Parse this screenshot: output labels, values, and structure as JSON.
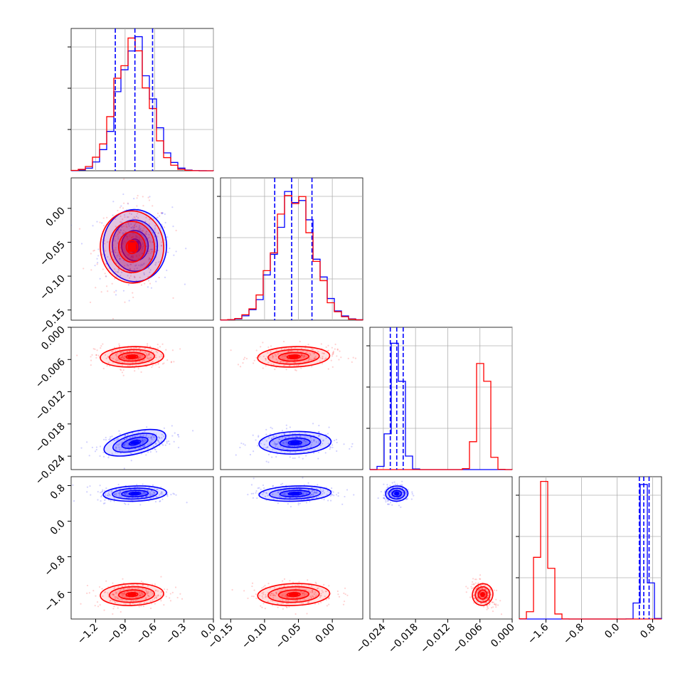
{
  "chart_data": {
    "type": "corner",
    "params": [
      {
        "range": [
          -1.45,
          0.0
        ],
        "ticks": [
          -1.2,
          -0.9,
          -0.6,
          -0.3,
          0.0
        ],
        "tick_labels": [
          "−1.2",
          "−0.9",
          "−0.6",
          "−0.3",
          "0.0"
        ]
      },
      {
        "range": [
          -0.165,
          0.045
        ],
        "ticks": [
          -0.15,
          -0.1,
          -0.05,
          0.0
        ],
        "tick_labels": [
          "−0.15",
          "−0.10",
          "−0.05",
          "0.00"
        ]
      },
      {
        "range": [
          -0.0265,
          0.0
        ],
        "ticks": [
          -0.024,
          -0.018,
          -0.012,
          -0.006,
          0.0
        ],
        "tick_labels": [
          "−0.024",
          "−0.018",
          "−0.012",
          "−0.006",
          "0.000"
        ]
      },
      {
        "range": [
          -2.2,
          1.0
        ],
        "ticks": [
          -1.6,
          -0.8,
          0.0,
          0.8
        ],
        "tick_labels": [
          "−1.6",
          "−0.8",
          "0.0",
          "0.8"
        ]
      }
    ],
    "series": [
      {
        "color": "#0000ff",
        "mean": [
          -0.8,
          -0.055,
          -0.0215,
          0.62
        ],
        "std": [
          0.17,
          0.028,
          0.0011,
          0.09
        ]
      },
      {
        "color": "#ff0000",
        "mean": [
          -0.83,
          -0.057,
          -0.0055,
          -1.65
        ],
        "std": [
          0.17,
          0.028,
          0.001,
          0.13
        ]
      }
    ],
    "quantile_lines": [
      [
        -1.0,
        -0.8,
        -0.62
      ],
      [
        -0.085,
        -0.06,
        -0.03
      ],
      [
        -0.0227,
        -0.0215,
        -0.0203
      ],
      [
        0.5,
        0.6,
        0.72
      ]
    ],
    "colors": {
      "series_1": "#0000ff",
      "series_2": "#ff0000",
      "grid": "#b0b0b0"
    }
  }
}
